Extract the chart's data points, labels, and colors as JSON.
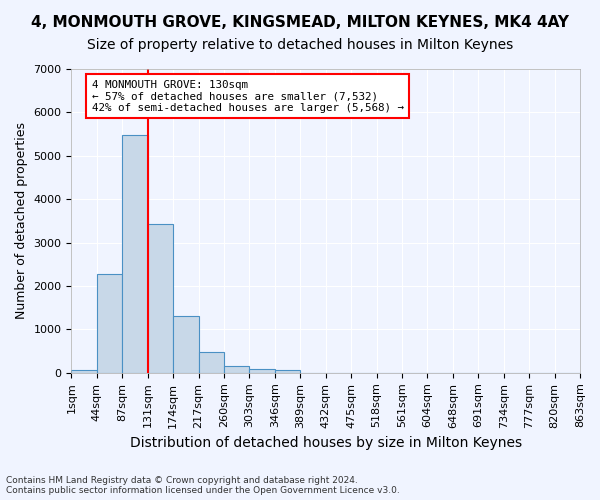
{
  "title1": "4, MONMOUTH GROVE, KINGSMEAD, MILTON KEYNES, MK4 4AY",
  "title2": "Size of property relative to detached houses in Milton Keynes",
  "xlabel": "Distribution of detached houses by size in Milton Keynes",
  "ylabel": "Number of detached properties",
  "footer1": "Contains HM Land Registry data © Crown copyright and database right 2024.",
  "footer2": "Contains public sector information licensed under the Open Government Licence v3.0.",
  "bin_labels": [
    "1sqm",
    "44sqm",
    "87sqm",
    "131sqm",
    "174sqm",
    "217sqm",
    "260sqm",
    "303sqm",
    "346sqm",
    "389sqm",
    "432sqm",
    "475sqm",
    "518sqm",
    "561sqm",
    "604sqm",
    "648sqm",
    "691sqm",
    "734sqm",
    "777sqm",
    "820sqm",
    "863sqm"
  ],
  "bar_values": [
    75,
    2270,
    5480,
    3440,
    1310,
    470,
    160,
    80,
    55,
    0,
    0,
    0,
    0,
    0,
    0,
    0,
    0,
    0,
    0,
    0
  ],
  "bar_color": "#c8d8e8",
  "bar_edge_color": "#4a90c4",
  "vline_x": 3,
  "vline_color": "red",
  "annotation_text": "4 MONMOUTH GROVE: 130sqm\n← 57% of detached houses are smaller (7,532)\n42% of semi-detached houses are larger (5,568) →",
  "annotation_box_color": "white",
  "annotation_box_edge": "red",
  "ylim": [
    0,
    7000
  ],
  "yticks": [
    0,
    1000,
    2000,
    3000,
    4000,
    5000,
    6000,
    7000
  ],
  "background_color": "#f0f4ff",
  "grid_color": "#ffffff",
  "title1_fontsize": 11,
  "title2_fontsize": 10,
  "xlabel_fontsize": 10,
  "ylabel_fontsize": 9,
  "tick_fontsize": 8
}
